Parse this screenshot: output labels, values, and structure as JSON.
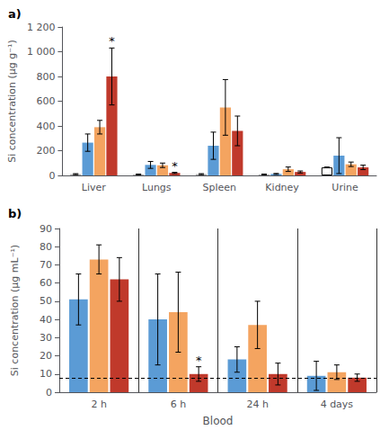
{
  "chart_data": [
    {
      "type": "bar",
      "label": "a)",
      "ylabel": "Si concentration (µg g⁻¹)",
      "categories": [
        "Liver",
        "Lungs",
        "Spleen",
        "Kidney",
        "Urine"
      ],
      "series": [
        {
          "colors": [
            "#aaaaaa",
            "#aaaaaa",
            "#aaaaaa",
            "#aaaaaa",
            "#ffffff"
          ],
          "values": [
            10,
            8,
            10,
            8,
            65
          ],
          "errors": [
            4,
            3,
            4,
            3,
            3
          ]
        },
        {
          "color": "#5b9bd5",
          "values": [
            265,
            85,
            240,
            12,
            160
          ],
          "errors": [
            70,
            28,
            110,
            4,
            145
          ]
        },
        {
          "color": "#f4a460",
          "values": [
            390,
            82,
            550,
            50,
            90
          ],
          "errors": [
            55,
            18,
            225,
            18,
            18
          ]
        },
        {
          "color": "#c0392b",
          "values": [
            800,
            20,
            360,
            28,
            65
          ],
          "errors": [
            230,
            5,
            120,
            8,
            18
          ]
        }
      ],
      "ylim": [
        0,
        1200
      ],
      "yticks": [
        0,
        200,
        400,
        600,
        800,
        {
          "value": 1000,
          "label": "1 000"
        },
        {
          "value": 1200,
          "label": "1 200"
        }
      ],
      "annotations": [
        {
          "text": "*",
          "category": "Liver",
          "series": 3
        },
        {
          "text": "*",
          "category": "Lungs",
          "series": 3
        }
      ],
      "grid": false
    },
    {
      "type": "bar",
      "label": "b)",
      "ylabel": "Si concentration (µg mL⁻¹)",
      "xlabel": "Blood",
      "categories": [
        "2 h",
        "6 h",
        "24 h",
        "4 days"
      ],
      "series": [
        {
          "color": "#5b9bd5",
          "values": [
            51,
            40,
            18,
            9
          ],
          "errors": [
            14,
            25,
            7,
            8
          ]
        },
        {
          "color": "#f4a460",
          "values": [
            73,
            44,
            37,
            11
          ],
          "errors": [
            8,
            22,
            13,
            4
          ]
        },
        {
          "color": "#c0392b",
          "values": [
            62,
            10,
            10,
            8
          ],
          "errors": [
            12,
            4,
            6,
            2
          ]
        }
      ],
      "ylim": [
        0,
        90
      ],
      "yticks": [
        0,
        10,
        20,
        30,
        40,
        50,
        60,
        70,
        80,
        90
      ],
      "hline": {
        "y": 8,
        "line_style": "dashed",
        "color": "#000000"
      },
      "annotations": [
        {
          "text": "*",
          "category": "6 h",
          "series": 2
        }
      ],
      "grid": "x"
    }
  ]
}
